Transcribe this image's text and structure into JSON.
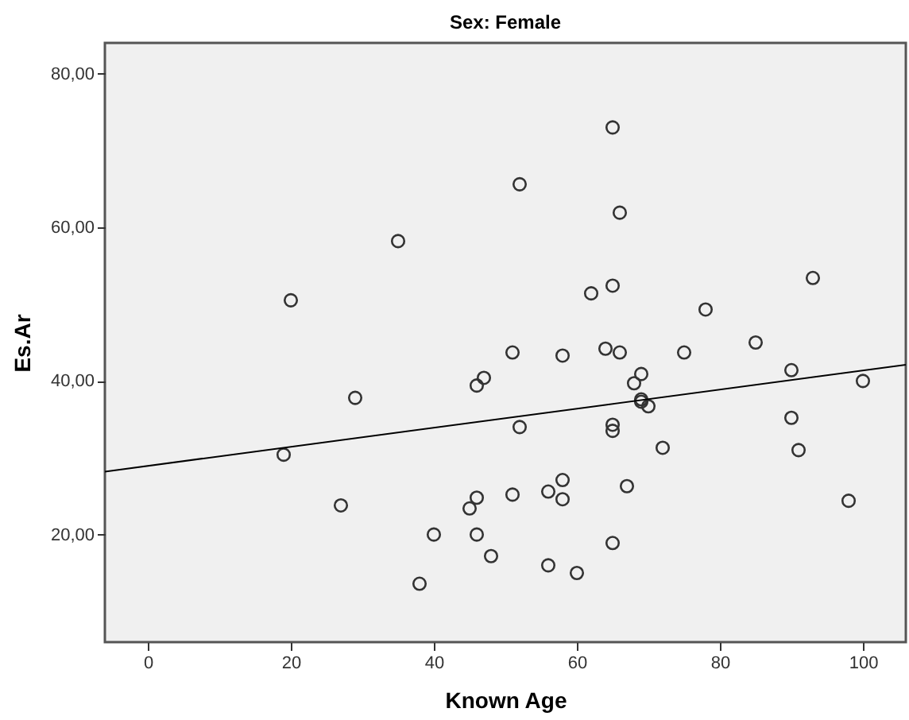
{
  "chart_data": {
    "type": "scatter",
    "title": "Sex: Female",
    "xlabel": "Known Age",
    "ylabel": "Es.Ar",
    "xlim": [
      -6,
      106
    ],
    "ylim": [
      6,
      84
    ],
    "xticks": [
      0,
      20,
      40,
      60,
      80,
      100
    ],
    "yticks": [
      {
        "value": 20,
        "label": "20,00"
      },
      {
        "value": 40,
        "label": "40,00"
      },
      {
        "value": 60,
        "label": "60,00"
      },
      {
        "value": 80,
        "label": "80,00"
      }
    ],
    "grid": false,
    "marker": "circle",
    "series": [
      {
        "color": "#333333",
        "x": [
          19,
          20,
          29,
          27,
          35,
          65,
          52,
          66,
          62,
          65,
          78,
          93,
          85,
          51,
          58,
          64,
          66,
          75,
          47,
          46,
          40,
          46,
          45,
          38,
          46,
          48,
          90,
          100,
          69,
          68,
          69,
          70,
          69,
          52,
          65,
          65,
          72,
          90,
          91,
          58,
          56,
          58,
          51,
          67,
          98,
          65,
          56,
          60
        ],
        "values": [
          30.4,
          50.5,
          37.8,
          23.8,
          58.2,
          73.0,
          65.6,
          61.9,
          51.4,
          52.4,
          49.3,
          53.4,
          45.0,
          43.7,
          43.3,
          44.2,
          43.7,
          43.7,
          40.4,
          39.4,
          20.0,
          20.0,
          23.4,
          13.6,
          24.8,
          17.2,
          41.4,
          40.0,
          40.9,
          39.7,
          37.6,
          36.7,
          37.3,
          34.0,
          34.3,
          33.5,
          31.3,
          35.2,
          31.0,
          27.1,
          25.6,
          24.6,
          25.2,
          26.3,
          24.4,
          18.9,
          16.0,
          15.0
        ]
      },
      {
        "type": "line",
        "marker": "none",
        "color": "#000000",
        "x": [
          -6,
          106
        ],
        "values": [
          28.2,
          42.1
        ]
      }
    ]
  }
}
